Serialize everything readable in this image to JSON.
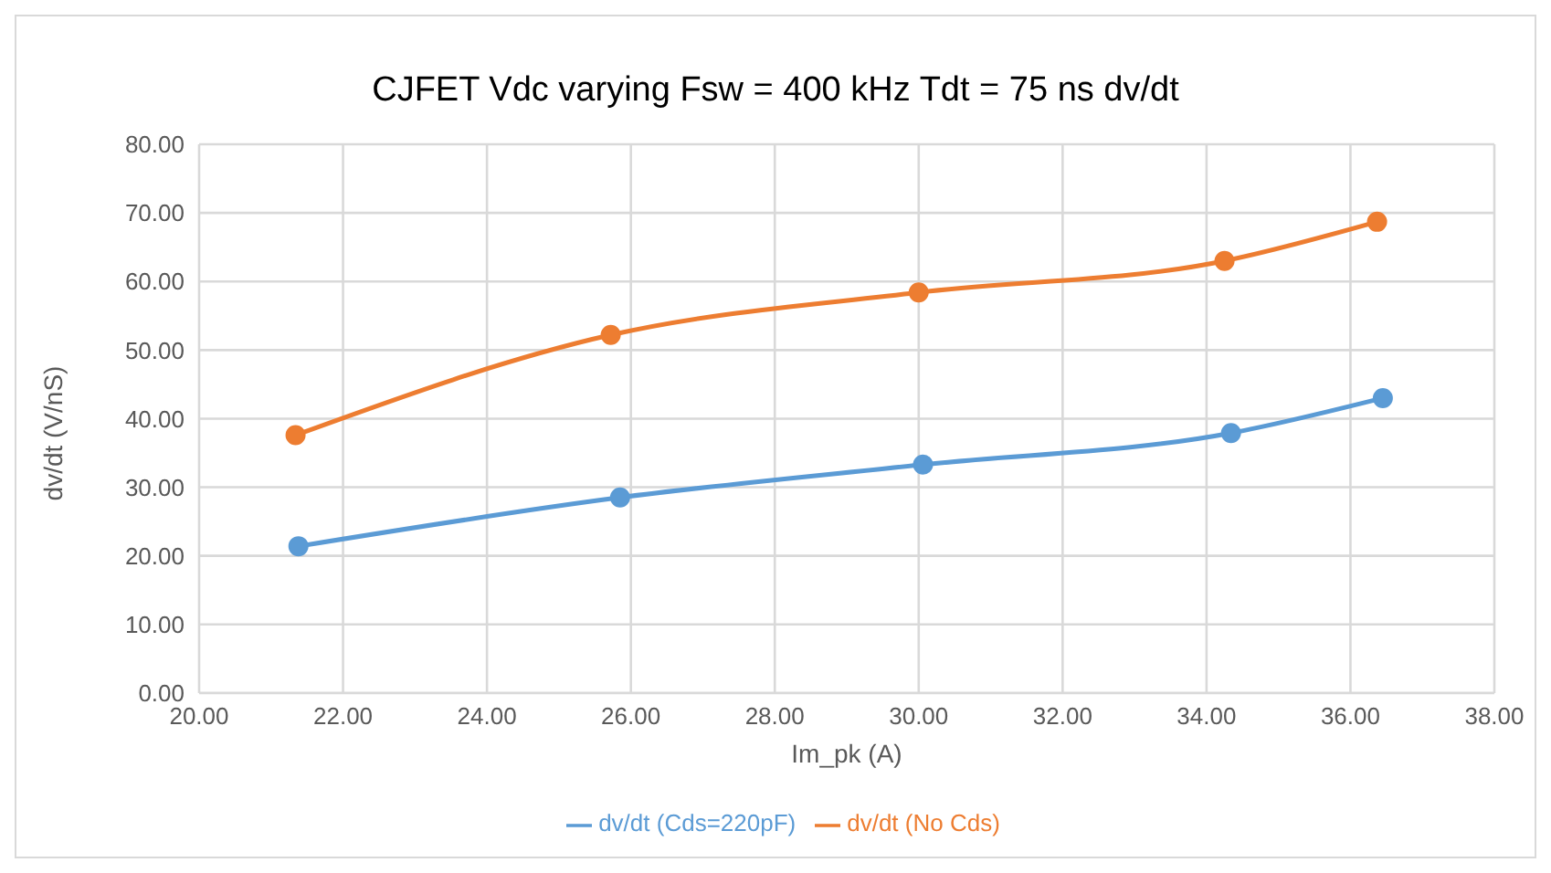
{
  "chart_data": {
    "type": "line",
    "title": "CJFET Vdc varying Fsw = 400 kHz Tdt = 75 ns dv/dt",
    "xlabel": "Im_pk (A)",
    "ylabel": "dv/dt (V/nS)",
    "series": [
      {
        "name": "dv/dt (Cds=220pF)",
        "color": "#5b9bd5",
        "x": [
          21.38,
          25.85,
          30.06,
          34.34,
          36.45
        ],
        "values": [
          21.4,
          28.5,
          33.3,
          37.9,
          43.0
        ]
      },
      {
        "name": "dv/dt (No Cds)",
        "color": "#ed7d31",
        "x": [
          21.34,
          25.72,
          30.0,
          34.25,
          36.37
        ],
        "values": [
          37.6,
          52.2,
          58.4,
          63.0,
          68.7
        ]
      }
    ],
    "xlim": [
      20,
      38
    ],
    "xticks": [
      {
        "value": 20,
        "label": "20.00"
      },
      {
        "value": 22,
        "label": "22.00"
      },
      {
        "value": 24,
        "label": "24.00"
      },
      {
        "value": 26,
        "label": "26.00"
      },
      {
        "value": 28,
        "label": "28.00"
      },
      {
        "value": 30,
        "label": "30.00"
      },
      {
        "value": 32,
        "label": "32.00"
      },
      {
        "value": 34,
        "label": "34.00"
      },
      {
        "value": 36,
        "label": "36.00"
      },
      {
        "value": 38,
        "label": "38.00"
      }
    ],
    "ylim": [
      0,
      80
    ],
    "yticks": [
      {
        "value": 0,
        "label": "0.00"
      },
      {
        "value": 10,
        "label": "10.00"
      },
      {
        "value": 20,
        "label": "20.00"
      },
      {
        "value": 30,
        "label": "30.00"
      },
      {
        "value": 40,
        "label": "40.00"
      },
      {
        "value": 50,
        "label": "50.00"
      },
      {
        "value": 60,
        "label": "60.00"
      },
      {
        "value": 70,
        "label": "70.00"
      },
      {
        "value": 80,
        "label": "80.00"
      }
    ],
    "grid": true,
    "legend": "bottom",
    "marker": "circle",
    "line_style": "solid"
  }
}
